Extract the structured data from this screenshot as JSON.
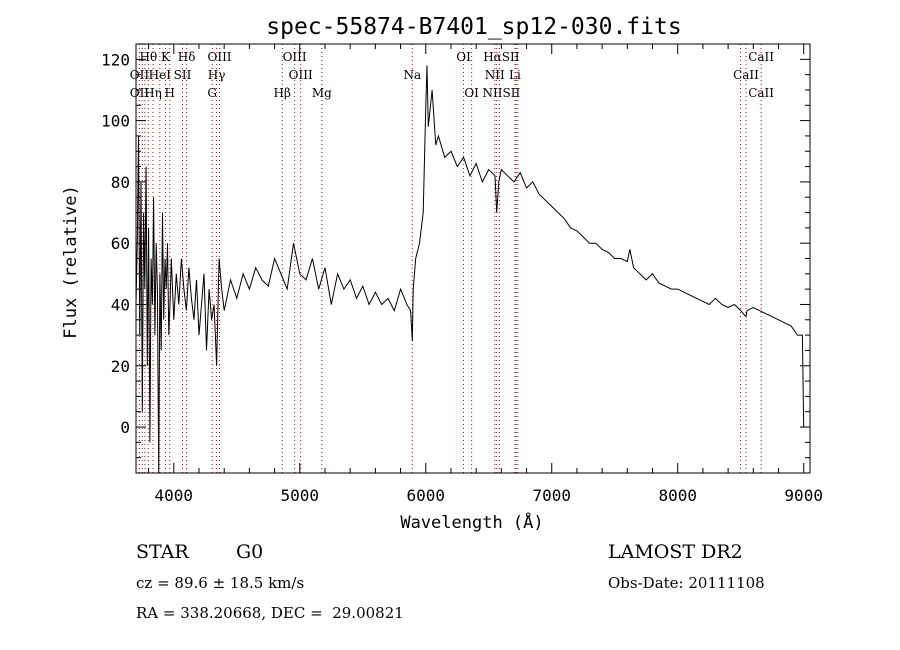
{
  "chart_data": {
    "type": "line",
    "title": "spec-55874-B7401_sp12-030.fits",
    "xlabel": "Wavelength (Å)",
    "ylabel": "Flux (relative)",
    "xlim": [
      3700,
      9050
    ],
    "ylim": [
      -15,
      125
    ],
    "xticks": [
      4000,
      5000,
      6000,
      7000,
      8000,
      9000
    ],
    "yticks": [
      0,
      20,
      40,
      60,
      80,
      100,
      120
    ],
    "line_color": "#000000",
    "marker_color": "#cc0000",
    "series": [
      {
        "x": [
          3700,
          3710,
          3720,
          3730,
          3740,
          3750,
          3760,
          3770,
          3780,
          3790,
          3800,
          3810,
          3820,
          3830,
          3840,
          3850,
          3860,
          3870,
          3880,
          3890,
          3900,
          3910,
          3920,
          3930,
          3940,
          3950,
          3960,
          3970,
          3980,
          3990,
          4000,
          4020,
          4040,
          4060,
          4080,
          4100,
          4120,
          4140,
          4160,
          4180,
          4200,
          4220,
          4240,
          4260,
          4280,
          4300,
          4320,
          4340,
          4360,
          4380,
          4400,
          4450,
          4500,
          4550,
          4600,
          4650,
          4700,
          4750,
          4800,
          4850,
          4900,
          4950,
          5000,
          5050,
          5100,
          5150,
          5200,
          5250,
          5300,
          5350,
          5400,
          5450,
          5500,
          5550,
          5600,
          5650,
          5700,
          5750,
          5800,
          5850,
          5880,
          5893,
          5900,
          5920,
          5950,
          5980,
          6000,
          6010,
          6020,
          6050,
          6080,
          6100,
          6150,
          6200,
          6250,
          6300,
          6350,
          6400,
          6450,
          6500,
          6550,
          6563,
          6580,
          6600,
          6650,
          6700,
          6750,
          6800,
          6850,
          6900,
          6950,
          7000,
          7050,
          7100,
          7150,
          7200,
          7250,
          7300,
          7350,
          7400,
          7450,
          7500,
          7550,
          7600,
          7620,
          7650,
          7700,
          7750,
          7800,
          7850,
          7900,
          7950,
          8000,
          8050,
          8100,
          8150,
          8200,
          8250,
          8300,
          8350,
          8400,
          8450,
          8500,
          8542,
          8550,
          8600,
          8650,
          8700,
          8750,
          8800,
          8850,
          8900,
          8950,
          8990,
          9000
        ],
        "y": [
          40,
          60,
          95,
          30,
          80,
          5,
          70,
          45,
          85,
          20,
          65,
          -5,
          55,
          40,
          75,
          30,
          60,
          45,
          -15,
          50,
          25,
          70,
          35,
          55,
          45,
          60,
          30,
          40,
          55,
          45,
          35,
          50,
          40,
          55,
          45,
          38,
          52,
          42,
          35,
          48,
          30,
          40,
          50,
          25,
          45,
          35,
          40,
          20,
          55,
          45,
          38,
          48,
          42,
          50,
          45,
          52,
          48,
          46,
          55,
          50,
          45,
          60,
          50,
          48,
          55,
          45,
          52,
          40,
          50,
          45,
          48,
          42,
          46,
          40,
          44,
          40,
          42,
          38,
          45,
          40,
          38,
          28,
          45,
          55,
          60,
          70,
          105,
          118,
          98,
          110,
          92,
          95,
          88,
          90,
          85,
          88,
          82,
          86,
          80,
          84,
          82,
          70,
          80,
          84,
          82,
          80,
          83,
          78,
          80,
          76,
          74,
          72,
          70,
          68,
          65,
          64,
          62,
          60,
          60,
          58,
          57,
          55,
          55,
          54,
          58,
          52,
          50,
          48,
          50,
          47,
          46,
          45,
          45,
          44,
          43,
          42,
          41,
          40,
          42,
          40,
          39,
          40,
          38,
          36,
          38,
          39,
          38,
          37,
          36,
          35,
          34,
          33,
          30,
          30,
          0
        ]
      }
    ],
    "line_markers": [
      {
        "label": "Hθ",
        "x": 3798,
        "row": 1
      },
      {
        "label": "K",
        "x": 3934,
        "row": 1
      },
      {
        "label": "Hδ",
        "x": 4102,
        "row": 1
      },
      {
        "label": "OIII",
        "x": 4363,
        "row": 1
      },
      {
        "label": "OIII",
        "x": 4959,
        "row": 1
      },
      {
        "label": "OI",
        "x": 6300,
        "row": 1
      },
      {
        "label": "HαSII",
        "x": 6600,
        "row": 1
      },
      {
        "label": "CaII",
        "x": 8662,
        "row": 1
      },
      {
        "label": "OII",
        "x": 3727,
        "row": 2
      },
      {
        "label": "HeI",
        "x": 3889,
        "row": 2
      },
      {
        "label": "SII",
        "x": 4069,
        "row": 2
      },
      {
        "label": "Hγ",
        "x": 4340,
        "row": 2
      },
      {
        "label": "OIII",
        "x": 5007,
        "row": 2
      },
      {
        "label": "Na",
        "x": 5893,
        "row": 2
      },
      {
        "label": "NII",
        "x": 6548,
        "row": 2
      },
      {
        "label": "Li",
        "x": 6708,
        "row": 2
      },
      {
        "label": "CaII",
        "x": 8542,
        "row": 2
      },
      {
        "label": "OII",
        "x": 3727,
        "row": 3
      },
      {
        "label": "Hη",
        "x": 3835,
        "row": 3
      },
      {
        "label": "H",
        "x": 3968,
        "row": 3
      },
      {
        "label": "G",
        "x": 4305,
        "row": 3
      },
      {
        "label": "Hβ",
        "x": 4861,
        "row": 3
      },
      {
        "label": "Mg",
        "x": 5175,
        "row": 3
      },
      {
        "label": "OI",
        "x": 6364,
        "row": 3
      },
      {
        "label": "NIISII",
        "x": 6600,
        "row": 3
      },
      {
        "label": "CaII",
        "x": 8662,
        "row": 3
      }
    ],
    "marker_x": [
      3727,
      3750,
      3771,
      3798,
      3835,
      3889,
      3934,
      3968,
      4069,
      4102,
      4305,
      4340,
      4363,
      4861,
      4959,
      5007,
      5175,
      5893,
      6300,
      6364,
      6548,
      6563,
      6584,
      6708,
      6717,
      6731,
      8498,
      8542,
      8662
    ]
  },
  "info": {
    "class_label": "STAR",
    "subclass_label": "G0",
    "survey": "LAMOST DR2",
    "cz": "cz = 89.6 ± 18.5 km/s",
    "obs_date": "Obs-Date: 20111108",
    "coords": "RA = 338.20668, DEC =  29.00821"
  }
}
